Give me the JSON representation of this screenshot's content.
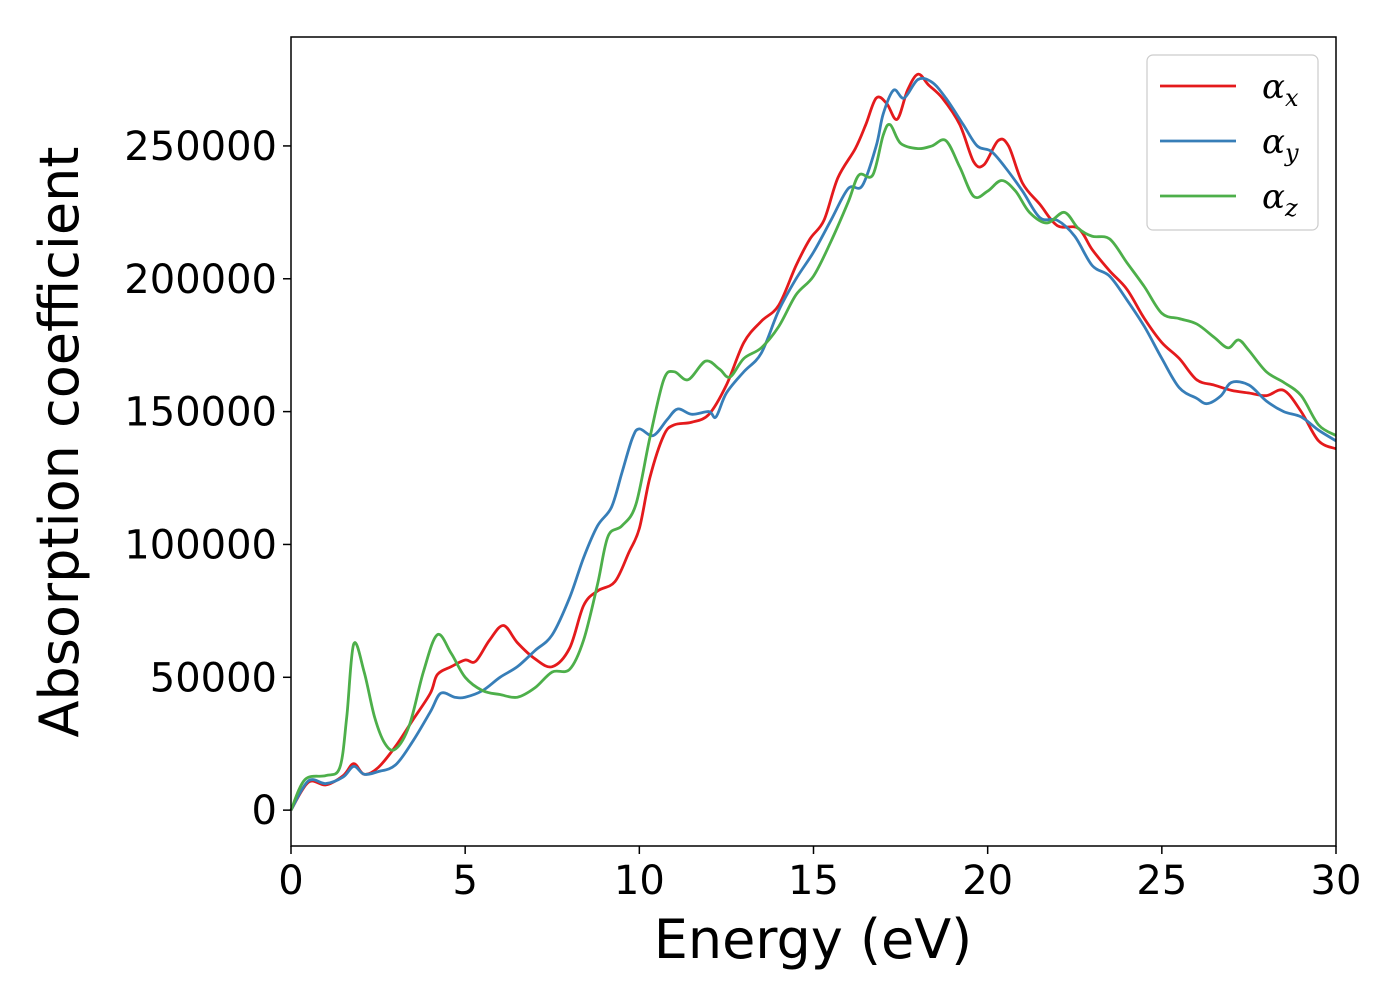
{
  "chart_data": {
    "type": "line",
    "title": "",
    "xlabel": "Energy (eV)",
    "ylabel": "Absorption coefficient",
    "xlim": [
      0,
      30
    ],
    "ylim": [
      -13500,
      291000
    ],
    "xticks": [
      0,
      5,
      10,
      15,
      20,
      25,
      30
    ],
    "xtick_labels": [
      "0",
      "5",
      "10",
      "15",
      "20",
      "25",
      "30"
    ],
    "yticks": [
      0,
      50000,
      100000,
      150000,
      200000,
      250000
    ],
    "ytick_labels": [
      "0",
      "50000",
      "100000",
      "150000",
      "200000",
      "250000"
    ],
    "grid": false,
    "legend_position": "top-right",
    "series": [
      {
        "name": "α_x",
        "name_base": "α",
        "name_sub": "x",
        "color": "#e41a1c",
        "points": [
          [
            0,
            0
          ],
          [
            0.5,
            10500
          ],
          [
            1,
            9500
          ],
          [
            1.5,
            13000
          ],
          [
            1.8,
            17500
          ],
          [
            2.1,
            13500
          ],
          [
            2.5,
            16000
          ],
          [
            3,
            24000
          ],
          [
            3.5,
            34000
          ],
          [
            4,
            44000
          ],
          [
            4.2,
            51000
          ],
          [
            4.6,
            54000
          ],
          [
            5,
            56500
          ],
          [
            5.3,
            56000
          ],
          [
            5.7,
            64000
          ],
          [
            6.1,
            69500
          ],
          [
            6.5,
            63000
          ],
          [
            7,
            57000
          ],
          [
            7.5,
            54000
          ],
          [
            8,
            61000
          ],
          [
            8.4,
            77000
          ],
          [
            8.8,
            82500
          ],
          [
            9.3,
            86000
          ],
          [
            9.7,
            97000
          ],
          [
            10,
            106000
          ],
          [
            10.3,
            125000
          ],
          [
            10.7,
            141000
          ],
          [
            11,
            145000
          ],
          [
            11.5,
            146000
          ],
          [
            12,
            149000
          ],
          [
            12.5,
            160000
          ],
          [
            13,
            176000
          ],
          [
            13.5,
            184000
          ],
          [
            14,
            190000
          ],
          [
            14.5,
            205000
          ],
          [
            14.9,
            215000
          ],
          [
            15.3,
            222000
          ],
          [
            15.7,
            238000
          ],
          [
            16.2,
            249000
          ],
          [
            16.5,
            258000
          ],
          [
            16.8,
            268000
          ],
          [
            17.1,
            266000
          ],
          [
            17.4,
            260000
          ],
          [
            17.7,
            271000
          ],
          [
            18,
            277000
          ],
          [
            18.3,
            273000
          ],
          [
            18.7,
            268000
          ],
          [
            19.2,
            258000
          ],
          [
            19.6,
            244000
          ],
          [
            19.9,
            243000
          ],
          [
            20.3,
            252000
          ],
          [
            20.6,
            250000
          ],
          [
            21,
            236000
          ],
          [
            21.5,
            228000
          ],
          [
            22,
            220000
          ],
          [
            22.6,
            219000
          ],
          [
            23,
            211000
          ],
          [
            23.5,
            203000
          ],
          [
            24,
            196000
          ],
          [
            24.5,
            185000
          ],
          [
            25,
            176000
          ],
          [
            25.5,
            170000
          ],
          [
            26,
            162000
          ],
          [
            26.5,
            160000
          ],
          [
            27,
            158000
          ],
          [
            27.5,
            157000
          ],
          [
            28,
            156000
          ],
          [
            28.5,
            158000
          ],
          [
            29,
            150000
          ],
          [
            29.5,
            139000
          ],
          [
            30,
            136000
          ]
        ]
      },
      {
        "name": "α_y",
        "name_base": "α",
        "name_sub": "y",
        "color": "#377eb8",
        "points": [
          [
            0,
            0
          ],
          [
            0.5,
            11000
          ],
          [
            1,
            10000
          ],
          [
            1.5,
            12500
          ],
          [
            1.8,
            16500
          ],
          [
            2.1,
            13500
          ],
          [
            2.5,
            14500
          ],
          [
            3,
            17000
          ],
          [
            3.5,
            26000
          ],
          [
            4,
            37000
          ],
          [
            4.3,
            44000
          ],
          [
            4.7,
            42500
          ],
          [
            5,
            42500
          ],
          [
            5.5,
            45000
          ],
          [
            6,
            50000
          ],
          [
            6.5,
            54000
          ],
          [
            7,
            60000
          ],
          [
            7.5,
            66000
          ],
          [
            8,
            80000
          ],
          [
            8.4,
            95000
          ],
          [
            8.8,
            107000
          ],
          [
            9.2,
            114000
          ],
          [
            9.5,
            127000
          ],
          [
            9.8,
            140000
          ],
          [
            10,
            143500
          ],
          [
            10.4,
            141000
          ],
          [
            10.8,
            147000
          ],
          [
            11.1,
            151000
          ],
          [
            11.5,
            149000
          ],
          [
            12,
            150000
          ],
          [
            12.2,
            148000
          ],
          [
            12.5,
            157000
          ],
          [
            13,
            165000
          ],
          [
            13.5,
            172000
          ],
          [
            14,
            188000
          ],
          [
            14.5,
            200000
          ],
          [
            15,
            210000
          ],
          [
            15.5,
            222000
          ],
          [
            16,
            234000
          ],
          [
            16.4,
            235000
          ],
          [
            16.8,
            250000
          ],
          [
            17,
            262000
          ],
          [
            17.3,
            271000
          ],
          [
            17.6,
            268000
          ],
          [
            18,
            275000
          ],
          [
            18.4,
            274000
          ],
          [
            18.8,
            268000
          ],
          [
            19.3,
            258000
          ],
          [
            19.7,
            250000
          ],
          [
            20.1,
            248000
          ],
          [
            20.5,
            242000
          ],
          [
            21,
            233000
          ],
          [
            21.5,
            223000
          ],
          [
            22,
            222000
          ],
          [
            22.5,
            216000
          ],
          [
            23,
            205000
          ],
          [
            23.5,
            201000
          ],
          [
            24,
            192000
          ],
          [
            24.5,
            182000
          ],
          [
            25,
            170000
          ],
          [
            25.5,
            159000
          ],
          [
            26,
            155000
          ],
          [
            26.3,
            153000
          ],
          [
            26.7,
            156000
          ],
          [
            27,
            161000
          ],
          [
            27.5,
            160000
          ],
          [
            28,
            154000
          ],
          [
            28.5,
            150000
          ],
          [
            29,
            148000
          ],
          [
            29.5,
            143000
          ],
          [
            30,
            139000
          ]
        ]
      },
      {
        "name": "α_z",
        "name_base": "α",
        "name_sub": "z",
        "color": "#4daf4a",
        "points": [
          [
            0,
            0
          ],
          [
            0.4,
            11500
          ],
          [
            1,
            13000
          ],
          [
            1.4,
            16000
          ],
          [
            1.6,
            35000
          ],
          [
            1.8,
            62500
          ],
          [
            2.1,
            52000
          ],
          [
            2.4,
            35000
          ],
          [
            2.7,
            25000
          ],
          [
            3,
            23000
          ],
          [
            3.4,
            32000
          ],
          [
            3.8,
            52000
          ],
          [
            4.2,
            66000
          ],
          [
            4.6,
            59000
          ],
          [
            5,
            50000
          ],
          [
            5.5,
            45000
          ],
          [
            6,
            43500
          ],
          [
            6.5,
            42500
          ],
          [
            7,
            46000
          ],
          [
            7.5,
            52000
          ],
          [
            8,
            53000
          ],
          [
            8.4,
            64000
          ],
          [
            8.8,
            85000
          ],
          [
            9.1,
            103000
          ],
          [
            9.5,
            107000
          ],
          [
            9.9,
            115000
          ],
          [
            10.3,
            140000
          ],
          [
            10.7,
            162000
          ],
          [
            11,
            165000
          ],
          [
            11.4,
            162000
          ],
          [
            11.9,
            169000
          ],
          [
            12.3,
            166000
          ],
          [
            12.6,
            163000
          ],
          [
            13,
            170000
          ],
          [
            13.5,
            174000
          ],
          [
            14,
            182000
          ],
          [
            14.5,
            194000
          ],
          [
            15,
            201000
          ],
          [
            15.5,
            214000
          ],
          [
            16,
            229000
          ],
          [
            16.3,
            239000
          ],
          [
            16.7,
            239000
          ],
          [
            17,
            254000
          ],
          [
            17.2,
            258000
          ],
          [
            17.5,
            251000
          ],
          [
            18,
            249000
          ],
          [
            18.4,
            250000
          ],
          [
            18.8,
            252000
          ],
          [
            19.2,
            242000
          ],
          [
            19.6,
            231000
          ],
          [
            20,
            233000
          ],
          [
            20.4,
            237000
          ],
          [
            20.8,
            233000
          ],
          [
            21.2,
            225000
          ],
          [
            21.7,
            221000
          ],
          [
            22.2,
            225000
          ],
          [
            22.6,
            219000
          ],
          [
            23,
            216000
          ],
          [
            23.5,
            215000
          ],
          [
            24,
            206000
          ],
          [
            24.5,
            197000
          ],
          [
            25,
            187000
          ],
          [
            25.5,
            185000
          ],
          [
            26,
            183000
          ],
          [
            26.5,
            178000
          ],
          [
            26.9,
            174000
          ],
          [
            27.2,
            177000
          ],
          [
            27.5,
            173000
          ],
          [
            28,
            165000
          ],
          [
            28.5,
            161000
          ],
          [
            29,
            156000
          ],
          [
            29.5,
            145000
          ],
          [
            30,
            141000
          ]
        ]
      }
    ]
  }
}
